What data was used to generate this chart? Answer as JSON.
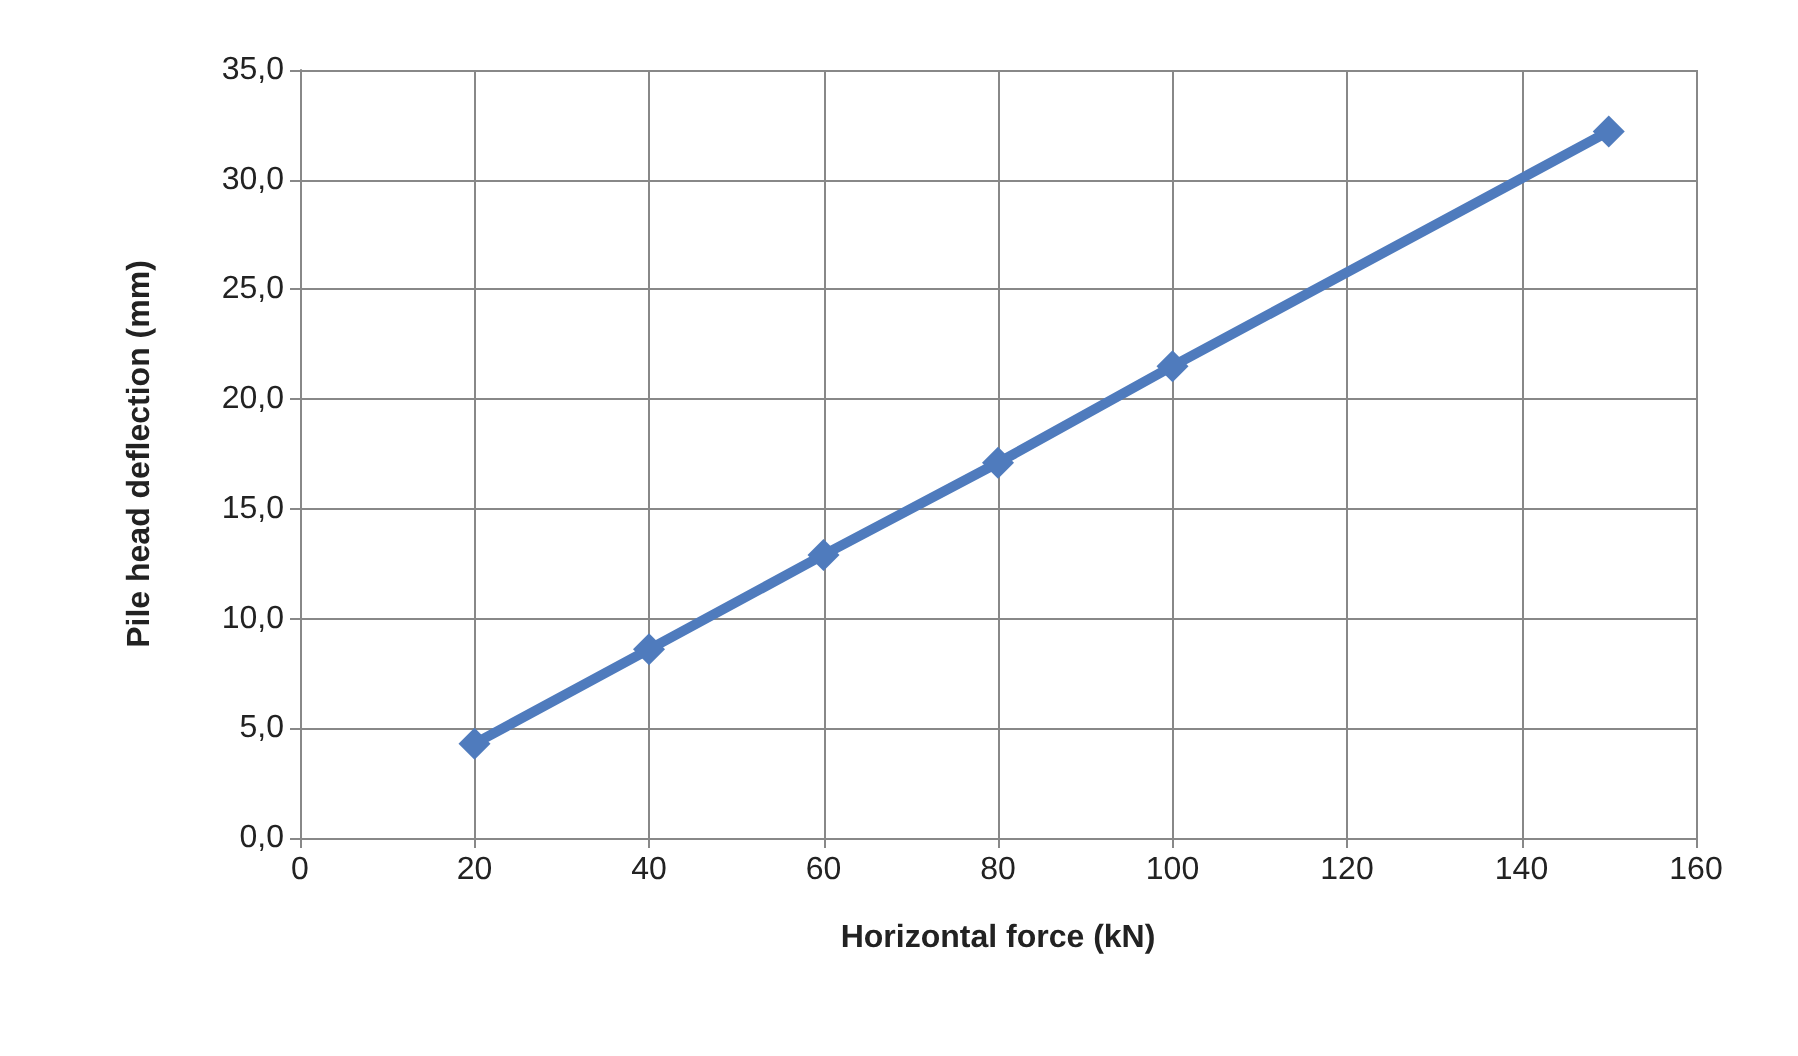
{
  "chart_data": {
    "type": "line",
    "xlabel": "Horizontal force (kN)",
    "ylabel": "Pile head deflection (mm)",
    "x": [
      20,
      40,
      60,
      80,
      100,
      150
    ],
    "series": [
      {
        "color": "#4f7bbd",
        "values": [
          4.3,
          8.6,
          12.9,
          17.1,
          21.5,
          32.2
        ]
      }
    ],
    "xlim": [
      0,
      160
    ],
    "xticks": [
      0,
      20,
      40,
      60,
      80,
      100,
      120,
      140,
      160
    ],
    "ylim": [
      0,
      35
    ],
    "yticks": [
      {
        "value": 0,
        "label": "0,0"
      },
      {
        "value": 5,
        "label": "5,0"
      },
      {
        "value": 10,
        "label": "10,0"
      },
      {
        "value": 15,
        "label": "15,0"
      },
      {
        "value": 20,
        "label": "20,0"
      },
      {
        "value": 25,
        "label": "25,0"
      },
      {
        "value": 30,
        "label": "30,0"
      },
      {
        "value": 35,
        "label": "35,0"
      }
    ],
    "grid": true,
    "marker": "diamond",
    "line_style": "solid"
  }
}
